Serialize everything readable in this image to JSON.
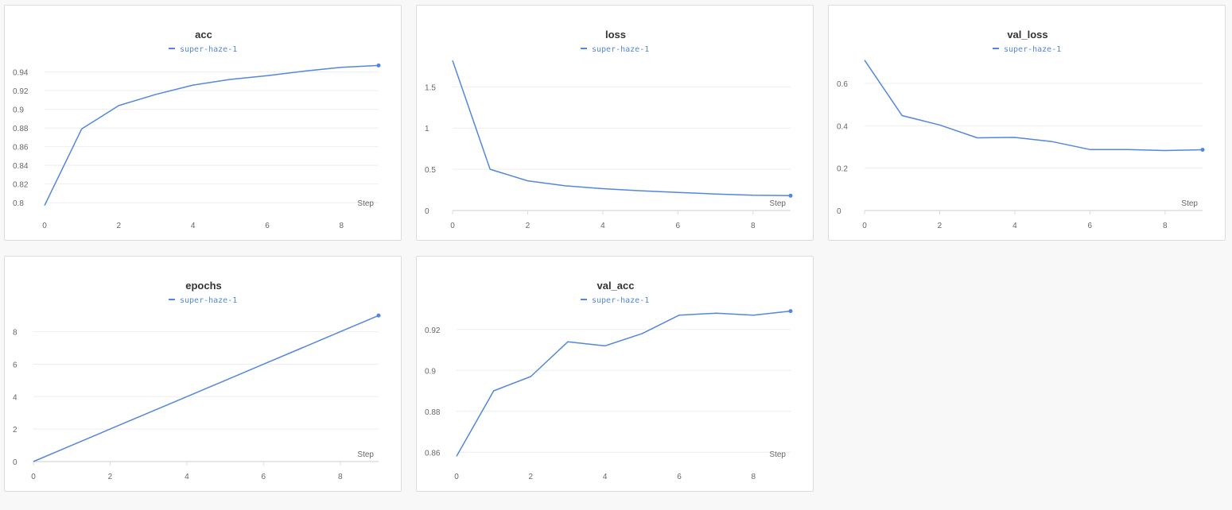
{
  "colors": {
    "series": "#5387dd",
    "background": "#f8f8f8",
    "panel": "#ffffff"
  },
  "chart_data": [
    {
      "type": "line",
      "title": "acc",
      "xlabel": "Step",
      "ylabel": "",
      "xlim": [
        0,
        9
      ],
      "ylim": [
        0.795,
        0.955
      ],
      "xticks": [
        "0",
        "2",
        "4",
        "6",
        "8"
      ],
      "yticks": [
        "0.8",
        "0.82",
        "0.84",
        "0.86",
        "0.88",
        "0.9",
        "0.92",
        "0.94"
      ],
      "x_axis_line": false,
      "grid": true,
      "legend": "top-center",
      "end_marker": true,
      "series": [
        {
          "name": "super-haze-1",
          "x": [
            0,
            1,
            2,
            3,
            4,
            5,
            6,
            7,
            8,
            9
          ],
          "values": [
            0.797,
            0.879,
            0.904,
            0.916,
            0.926,
            0.932,
            0.936,
            0.941,
            0.945,
            0.947
          ]
        }
      ]
    },
    {
      "type": "line",
      "title": "loss",
      "xlabel": "Step",
      "ylabel": "",
      "xlim": [
        0,
        9
      ],
      "ylim": [
        0,
        1.85
      ],
      "xticks": [
        "0",
        "2",
        "4",
        "6",
        "8"
      ],
      "yticks": [
        "0",
        "0.5",
        "1",
        "1.5"
      ],
      "x_axis_line": true,
      "grid": true,
      "legend": "top-center",
      "end_marker": true,
      "series": [
        {
          "name": "super-haze-1",
          "x": [
            0,
            1,
            2,
            3,
            4,
            5,
            6,
            7,
            8,
            9
          ],
          "values": [
            1.82,
            0.5,
            0.36,
            0.3,
            0.265,
            0.24,
            0.22,
            0.2,
            0.185,
            0.18
          ]
        }
      ]
    },
    {
      "type": "line",
      "title": "val_loss",
      "xlabel": "Step",
      "ylabel": "",
      "xlim": [
        0,
        9
      ],
      "ylim": [
        0,
        0.72
      ],
      "xticks": [
        "0",
        "2",
        "4",
        "6",
        "8"
      ],
      "yticks": [
        "0",
        "0.2",
        "0.4",
        "0.6"
      ],
      "x_axis_line": true,
      "grid": true,
      "legend": "top-center",
      "end_marker": true,
      "series": [
        {
          "name": "super-haze-1",
          "x": [
            0,
            1,
            2,
            3,
            4,
            5,
            6,
            7,
            8,
            9
          ],
          "values": [
            0.71,
            0.448,
            0.404,
            0.343,
            0.345,
            0.325,
            0.288,
            0.288,
            0.283,
            0.287
          ]
        }
      ]
    },
    {
      "type": "line",
      "title": "epochs",
      "xlabel": "Step",
      "ylabel": "",
      "xlim": [
        0,
        9
      ],
      "ylim": [
        0,
        9.4
      ],
      "xticks": [
        "0",
        "2",
        "4",
        "6",
        "8"
      ],
      "yticks": [
        "0",
        "2",
        "4",
        "6",
        "8"
      ],
      "x_axis_line": true,
      "grid": true,
      "legend": "top-center",
      "end_marker": true,
      "series": [
        {
          "name": "super-haze-1",
          "x": [
            0,
            1,
            2,
            3,
            4,
            5,
            6,
            7,
            8,
            9
          ],
          "values": [
            0,
            1,
            2,
            3,
            4,
            5,
            6,
            7,
            8,
            9
          ]
        }
      ]
    },
    {
      "type": "line",
      "title": "val_acc",
      "xlabel": "Step",
      "ylabel": "",
      "xlim": [
        0,
        9
      ],
      "ylim": [
        0.857,
        0.93
      ],
      "xticks": [
        "0",
        "2",
        "4",
        "6",
        "8"
      ],
      "yticks": [
        "0.86",
        "0.88",
        "0.9",
        "0.92"
      ],
      "x_axis_line": false,
      "grid": true,
      "legend": "top-center",
      "end_marker": true,
      "series": [
        {
          "name": "super-haze-1",
          "x": [
            0,
            1,
            2,
            3,
            4,
            5,
            6,
            7,
            8,
            9
          ],
          "values": [
            0.858,
            0.89,
            0.897,
            0.914,
            0.912,
            0.918,
            0.927,
            0.928,
            0.927,
            0.929
          ]
        }
      ]
    }
  ]
}
